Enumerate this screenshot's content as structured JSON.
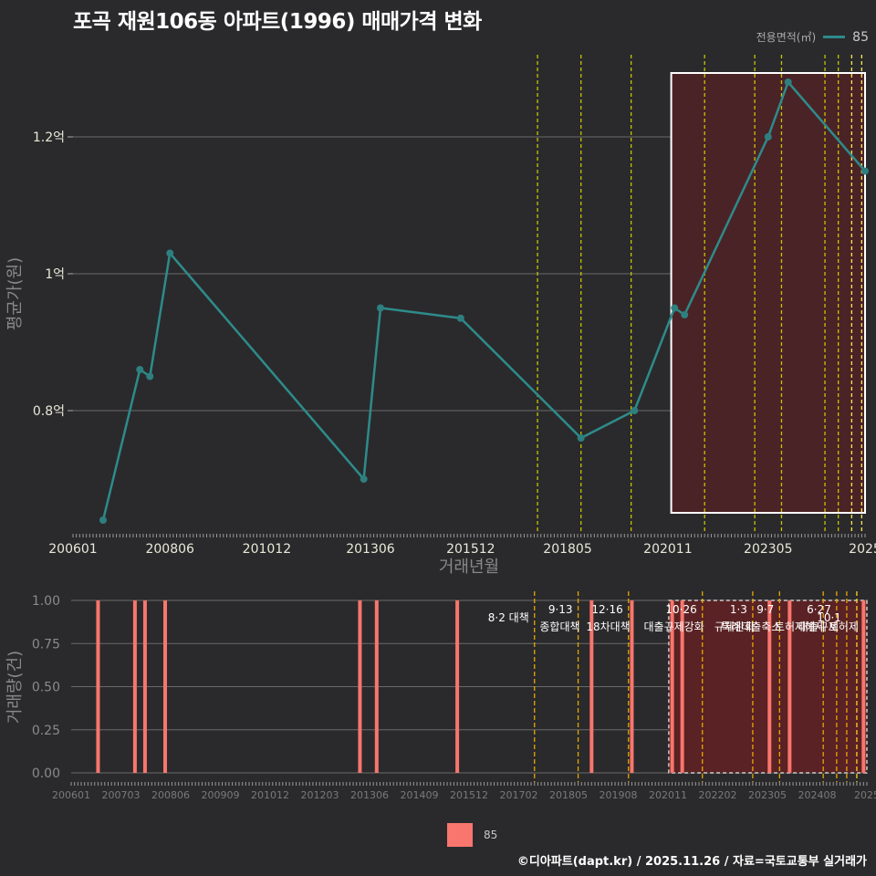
{
  "title": "포곡 재원106동 아파트(1996) 매매가격 변화",
  "legend_top": {
    "title": "전용면적(㎡)",
    "label": "85",
    "color": "#2e8b8b"
  },
  "legend_bottom": {
    "label": "85",
    "color": "#f8766d"
  },
  "footer": "©디아파트(dapt.kr) / 2025.11.26 / 자료=국토교통부 실거래가",
  "chart_data": [
    {
      "type": "line",
      "name": "price",
      "xlabel": "거래년월",
      "ylabel": "평균가(원)",
      "x_domain": [
        2006.0,
        2025.75
      ],
      "ylim": [
        0.62,
        1.32
      ],
      "yticks": [
        0.8,
        1.0,
        1.2
      ],
      "ytick_labels": [
        "0.8억",
        "1억",
        "1.2억"
      ],
      "xticks": [
        2006.0,
        2008.417,
        2010.833,
        2013.417,
        2015.917,
        2018.333,
        2020.833,
        2023.333,
        2025.75
      ],
      "xtick_labels": [
        "200601",
        "200806",
        "201012",
        "201306",
        "201512",
        "201805",
        "202011",
        "202305",
        "2025"
      ],
      "series": [
        {
          "name": "85",
          "points": [
            {
              "x": 2006.75,
              "y": 0.64
            },
            {
              "x": 2007.667,
              "y": 0.86
            },
            {
              "x": 2007.917,
              "y": 0.85
            },
            {
              "x": 2008.417,
              "y": 1.03
            },
            {
              "x": 2013.25,
              "y": 0.7
            },
            {
              "x": 2013.667,
              "y": 0.95
            },
            {
              "x": 2015.667,
              "y": 0.935
            },
            {
              "x": 2018.667,
              "y": 0.76
            },
            {
              "x": 2020.0,
              "y": 0.8
            },
            {
              "x": 2021.0,
              "y": 0.95
            },
            {
              "x": 2021.25,
              "y": 0.94
            },
            {
              "x": 2023.333,
              "y": 1.2
            },
            {
              "x": 2023.833,
              "y": 1.28
            },
            {
              "x": 2025.75,
              "y": 1.15
            }
          ]
        }
      ],
      "highlight_range": [
        2020.917,
        2025.75
      ],
      "policy_lines": [
        2017.583,
        2018.667,
        2019.917,
        2021.75,
        2023.0,
        2023.667,
        2024.75,
        2025.083,
        2025.417,
        2025.667
      ]
    },
    {
      "type": "bar",
      "name": "volume",
      "ylabel": "거래량(건)",
      "ylim": [
        0,
        1.0
      ],
      "yticks": [
        0.0,
        0.25,
        0.5,
        0.75,
        1.0
      ],
      "ytick_labels": [
        "0.00",
        "0.25",
        "0.50",
        "0.75",
        "1.00"
      ],
      "xtick_labels": [
        "200601",
        "200703",
        "200806",
        "200909",
        "201012",
        "201203",
        "201306",
        "201409",
        "201512",
        "201702",
        "201805",
        "201908",
        "202011",
        "202202",
        "202305",
        "202408",
        "2025"
      ],
      "bars": [
        2006.667,
        2007.583,
        2007.833,
        2008.333,
        2013.167,
        2013.583,
        2015.583,
        2018.917,
        2019.917,
        2020.917,
        2021.167,
        2023.333,
        2023.833,
        2025.667
      ],
      "bar_value": 1,
      "highlight_range": [
        2020.833,
        2025.75
      ],
      "policies": [
        {
          "x": 2017.5,
          "date": "8·2 대책",
          "name": ""
        },
        {
          "x": 2018.583,
          "date": "9·13",
          "name": "종합대책"
        },
        {
          "x": 2019.833,
          "date": "12·16",
          "name": "18차대책"
        },
        {
          "x": 2021.667,
          "date": "10·26",
          "name": "대출규제강화"
        },
        {
          "x": 2022.917,
          "date": "1·3",
          "name": "규제완화"
        },
        {
          "x": 2023.583,
          "date": "9·7",
          "name": "특례대출축소"
        },
        {
          "x": 2024.667,
          "date": "",
          "name": "토허제해제"
        },
        {
          "x": 2025.0,
          "date": "6·27",
          "name": "대출규제"
        },
        {
          "x": 2025.25,
          "date": "10·1",
          "name": ""
        },
        {
          "x": 2025.5,
          "date": "",
          "name": "토허제"
        }
      ]
    }
  ]
}
